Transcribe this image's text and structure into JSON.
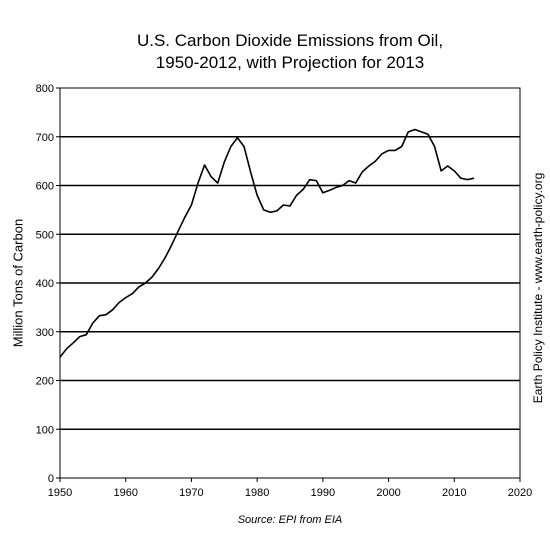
{
  "chart_data": {
    "type": "line",
    "title_line1": "U.S. Carbon Dioxide Emissions from Oil,",
    "title_line2": "1950-2012, with Projection for 2013",
    "ylabel": "Million Tons of Carbon",
    "xlabel": "",
    "source": "Source: EPI from EIA",
    "credit": "Earth Policy Institute - www.earth-policy.org",
    "xlim": [
      1950,
      2020
    ],
    "ylim": [
      0,
      800
    ],
    "x_ticks": [
      "1950",
      "1960",
      "1970",
      "1980",
      "1990",
      "2000",
      "2010",
      "2020"
    ],
    "y_ticks": [
      "0",
      "100",
      "200",
      "300",
      "400",
      "500",
      "600",
      "700",
      "800"
    ],
    "grid": "horizontal",
    "line_color": "#000000",
    "series": [
      {
        "x": [
          1950,
          1951,
          1952,
          1953,
          1954,
          1955,
          1956,
          1957,
          1958,
          1959,
          1960,
          1961,
          1962,
          1963,
          1964,
          1965,
          1966,
          1967,
          1968,
          1969,
          1970,
          1971,
          1972,
          1973,
          1974,
          1975,
          1976,
          1977,
          1978,
          1979,
          1980,
          1981,
          1982,
          1983,
          1984,
          1985,
          1986,
          1987,
          1988,
          1989,
          1990,
          1991,
          1992,
          1993,
          1994,
          1995,
          1996,
          1997,
          1998,
          1999,
          2000,
          2001,
          2002,
          2003,
          2004,
          2005,
          2006,
          2007,
          2008,
          2009,
          2010,
          2011,
          2012,
          2013
        ],
        "values": [
          248,
          265,
          277,
          290,
          294,
          318,
          333,
          335,
          345,
          360,
          370,
          378,
          392,
          400,
          412,
          430,
          452,
          478,
          507,
          535,
          560,
          605,
          642,
          618,
          605,
          648,
          680,
          698,
          680,
          628,
          580,
          550,
          545,
          548,
          560,
          558,
          580,
          592,
          612,
          610,
          585,
          590,
          596,
          600,
          610,
          605,
          628,
          640,
          650,
          665,
          672,
          672,
          680,
          710,
          715,
          710,
          705,
          680,
          630,
          640,
          630,
          615,
          612,
          615
        ]
      }
    ]
  }
}
